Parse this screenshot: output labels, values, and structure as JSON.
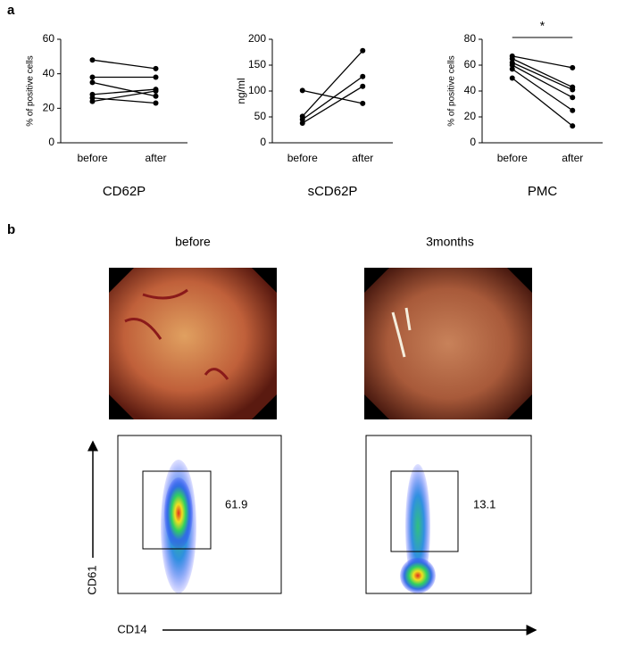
{
  "panel_labels": [
    "a",
    "b"
  ],
  "chart_data": [
    {
      "type": "line",
      "categories": [
        "before",
        "after"
      ],
      "ylabel": "% of positive cells",
      "xlabel": "CD62P",
      "ylim": [
        0,
        60
      ],
      "yticks": [
        0,
        20,
        40,
        60
      ],
      "color": "#000000",
      "series": [
        {
          "values": [
            48,
            43
          ]
        },
        {
          "values": [
            38,
            38
          ]
        },
        {
          "values": [
            35,
            27
          ]
        },
        {
          "values": [
            28,
            31
          ]
        },
        {
          "values": [
            26,
            23
          ]
        },
        {
          "values": [
            24,
            30
          ]
        }
      ]
    },
    {
      "type": "line",
      "categories": [
        "before",
        "after"
      ],
      "ylabel": "ng/ml",
      "xlabel": "sCD62P",
      "ylim": [
        0,
        200
      ],
      "yticks": [
        0,
        50,
        100,
        150,
        200
      ],
      "color": "#000000",
      "series": [
        {
          "values": [
            101,
            76
          ]
        },
        {
          "values": [
            51,
            178
          ]
        },
        {
          "values": [
            45,
            128
          ]
        },
        {
          "values": [
            38,
            109
          ]
        }
      ]
    },
    {
      "type": "line",
      "categories": [
        "before",
        "after"
      ],
      "ylabel": "% of positive cells",
      "xlabel": "PMC",
      "ylim": [
        0,
        80
      ],
      "yticks": [
        0,
        20,
        40,
        60,
        80
      ],
      "color": "#000000",
      "annotation": "*",
      "series": [
        {
          "values": [
            67,
            58
          ]
        },
        {
          "values": [
            65,
            43
          ]
        },
        {
          "values": [
            62,
            41
          ]
        },
        {
          "values": [
            60,
            35
          ]
        },
        {
          "values": [
            57,
            25
          ]
        },
        {
          "values": [
            50,
            13
          ]
        }
      ]
    }
  ],
  "panel_b": {
    "columns": [
      "before",
      "3months"
    ],
    "gate_values": [
      "61.9",
      "13.1"
    ],
    "y_axis": "CD61",
    "x_axis": "CD14"
  }
}
